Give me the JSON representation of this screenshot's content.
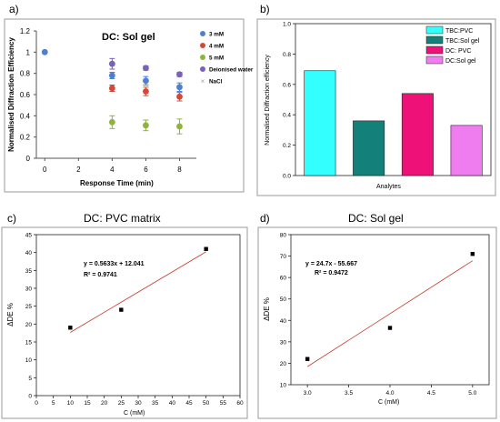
{
  "panels": {
    "a": {
      "label": "a)"
    },
    "b": {
      "label": "b)"
    },
    "c": {
      "label": "c)",
      "heading": "DC: PVC matrix"
    },
    "d": {
      "label": "d)",
      "heading": "DC: Sol gel"
    }
  },
  "chart_data": [
    {
      "id": "a",
      "type": "scatter",
      "title": "DC: Sol gel",
      "xlabel": "Response Time (min)",
      "ylabel": "Normalised Diffraction Efficiency",
      "xlim": [
        -0.5,
        9
      ],
      "ylim": [
        0,
        1.2
      ],
      "xticks": [
        "0",
        "2",
        "4",
        "6",
        "8"
      ],
      "yticks": [
        "0",
        "0.2",
        "0.4",
        "0.6",
        "0.8",
        "1",
        "1.2"
      ],
      "legend_position": "top-right",
      "series": [
        {
          "name": "3 mM",
          "color": "#4f7fcf",
          "points": [
            [
              0,
              1.0
            ],
            [
              4,
              0.78
            ],
            [
              6,
              0.73
            ],
            [
              8,
              0.67
            ]
          ],
          "errors": [
            0,
            0.03,
            0.04,
            0.04
          ]
        },
        {
          "name": "4 mM",
          "color": "#cf4a3c",
          "points": [
            [
              4,
              0.66
            ],
            [
              6,
              0.63
            ],
            [
              8,
              0.58
            ]
          ],
          "errors": [
            0.03,
            0.04,
            0.04
          ]
        },
        {
          "name": "5 mM",
          "color": "#8fb43c",
          "points": [
            [
              4,
              0.34
            ],
            [
              6,
              0.31
            ],
            [
              8,
              0.3
            ]
          ],
          "errors": [
            0.06,
            0.05,
            0.07
          ]
        },
        {
          "name": "Deionised water",
          "color": "#7a62b8",
          "points": [
            [
              4,
              0.89
            ],
            [
              6,
              0.85
            ],
            [
              8,
              0.79
            ]
          ],
          "errors": [
            0.05,
            0.02,
            0.02
          ]
        },
        {
          "name": "NaCl",
          "color": "#9aa2b0",
          "points": [],
          "errors": []
        }
      ]
    },
    {
      "id": "b",
      "type": "bar",
      "xlabel": "Analytes",
      "ylabel": "Normalised Diffraction efficiency",
      "ylim": [
        0,
        1.0
      ],
      "yticks": [
        "0.0",
        "0.2",
        "0.4",
        "0.6",
        "0.8",
        "1.0"
      ],
      "legend_position": "top-right",
      "categories": [
        "TBC:PVC",
        "TBC:Sol gel",
        "DC: PVC",
        "DC:Sol gel"
      ],
      "values": [
        0.69,
        0.36,
        0.54,
        0.33
      ],
      "colors": [
        "#33ffff",
        "#138079",
        "#ee1177",
        "#f07df0"
      ]
    },
    {
      "id": "c",
      "type": "scatter",
      "xlabel": "C (mM)",
      "ylabel": "ΔDE %",
      "xlim": [
        0,
        60
      ],
      "ylim": [
        0,
        45
      ],
      "xticks": [
        "0",
        "5",
        "10",
        "15",
        "20",
        "25",
        "30",
        "35",
        "40",
        "45",
        "50",
        "55",
        "60"
      ],
      "yticks": [
        "0",
        "5",
        "10",
        "15",
        "20",
        "25",
        "30",
        "35",
        "40",
        "45"
      ],
      "points": [
        [
          10,
          19.0
        ],
        [
          25,
          24.0
        ],
        [
          50,
          41.0
        ]
      ],
      "fit": {
        "slope": 0.5633,
        "intercept": 12.041,
        "x_range": [
          10,
          50
        ]
      },
      "annotations": [
        "y = 0.5633x + 12.041",
        "R² = 0.9741"
      ]
    },
    {
      "id": "d",
      "type": "scatter",
      "xlabel": "C (mM)",
      "ylabel": "ΔDE %",
      "xlim": [
        2.8,
        5.2
      ],
      "ylim": [
        10,
        80
      ],
      "xticks": [
        "3.0",
        "3.5",
        "4.0",
        "4.5",
        "5.0"
      ],
      "xtick_values": [
        3.0,
        3.5,
        4.0,
        4.5,
        5.0
      ],
      "yticks": [
        "10",
        "20",
        "30",
        "40",
        "50",
        "60",
        "70",
        "80"
      ],
      "points": [
        [
          3.0,
          22.0
        ],
        [
          4.0,
          36.5
        ],
        [
          5.0,
          71.0
        ]
      ],
      "fit": {
        "slope": 24.7,
        "intercept": -55.667,
        "x_range": [
          3.0,
          5.0
        ]
      },
      "annotations": [
        "y = 24.7x - 55.667",
        "R² = 0.9472"
      ]
    }
  ]
}
